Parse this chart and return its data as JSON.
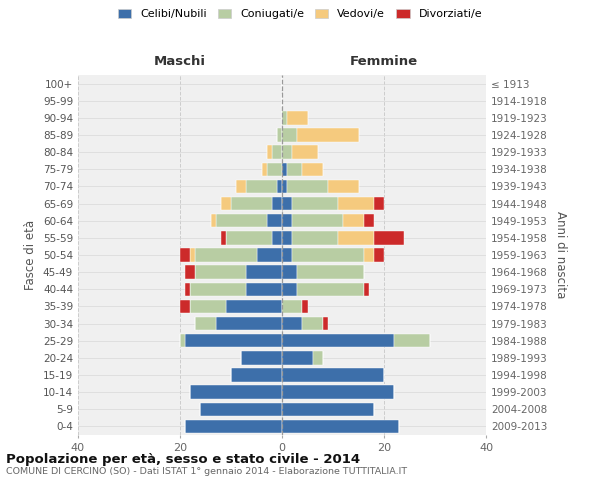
{
  "age_groups": [
    "100+",
    "95-99",
    "90-94",
    "85-89",
    "80-84",
    "75-79",
    "70-74",
    "65-69",
    "60-64",
    "55-59",
    "50-54",
    "45-49",
    "40-44",
    "35-39",
    "30-34",
    "25-29",
    "20-24",
    "15-19",
    "10-14",
    "5-9",
    "0-4"
  ],
  "birth_years": [
    "≤ 1913",
    "1914-1918",
    "1919-1923",
    "1924-1928",
    "1929-1933",
    "1934-1938",
    "1939-1943",
    "1944-1948",
    "1949-1953",
    "1954-1958",
    "1959-1963",
    "1964-1968",
    "1969-1973",
    "1974-1978",
    "1979-1983",
    "1984-1988",
    "1989-1993",
    "1994-1998",
    "1999-2003",
    "2004-2008",
    "2009-2013"
  ],
  "maschi_celibi": [
    0,
    0,
    0,
    0,
    0,
    0,
    1,
    2,
    3,
    2,
    5,
    7,
    7,
    11,
    13,
    19,
    8,
    10,
    18,
    16,
    19
  ],
  "maschi_coniugati": [
    0,
    0,
    0,
    1,
    2,
    3,
    6,
    8,
    10,
    9,
    12,
    10,
    11,
    7,
    4,
    1,
    0,
    0,
    0,
    0,
    0
  ],
  "maschi_vedovi": [
    0,
    0,
    0,
    0,
    1,
    1,
    2,
    2,
    1,
    0,
    1,
    0,
    0,
    0,
    0,
    0,
    0,
    0,
    0,
    0,
    0
  ],
  "maschi_divorziati": [
    0,
    0,
    0,
    0,
    0,
    0,
    0,
    0,
    0,
    1,
    2,
    2,
    1,
    2,
    0,
    0,
    0,
    0,
    0,
    0,
    0
  ],
  "femmine_nubili": [
    0,
    0,
    0,
    0,
    0,
    1,
    1,
    2,
    2,
    2,
    2,
    3,
    3,
    0,
    4,
    22,
    6,
    20,
    22,
    18,
    23
  ],
  "femmine_coniugate": [
    0,
    0,
    1,
    3,
    2,
    3,
    8,
    9,
    10,
    9,
    14,
    13,
    13,
    4,
    4,
    7,
    2,
    0,
    0,
    0,
    0
  ],
  "femmine_vedove": [
    0,
    0,
    4,
    12,
    5,
    4,
    6,
    7,
    4,
    7,
    2,
    0,
    0,
    0,
    0,
    0,
    0,
    0,
    0,
    0,
    0
  ],
  "femmine_divorziate": [
    0,
    0,
    0,
    0,
    0,
    0,
    0,
    2,
    2,
    6,
    2,
    0,
    1,
    1,
    1,
    0,
    0,
    0,
    0,
    0,
    0
  ],
  "colors": {
    "celibi": "#3d6faa",
    "coniugati": "#b8cda3",
    "vedovi": "#f5ca7e",
    "divorziati": "#cc2a2a"
  },
  "xlim": 40,
  "title": "Popolazione per età, sesso e stato civile - 2014",
  "subtitle": "COMUNE DI CERCINO (SO) - Dati ISTAT 1° gennaio 2014 - Elaborazione TUTTITALIA.IT",
  "ylabel_left": "Fasce di età",
  "ylabel_right": "Anni di nascita",
  "legend_labels": [
    "Celibi/Nubili",
    "Coniugati/e",
    "Vedovi/e",
    "Divorziati/e"
  ],
  "maschi_label": "Maschi",
  "femmine_label": "Femmine",
  "bg_color": "#ffffff",
  "plot_bg": "#f0f0f0"
}
